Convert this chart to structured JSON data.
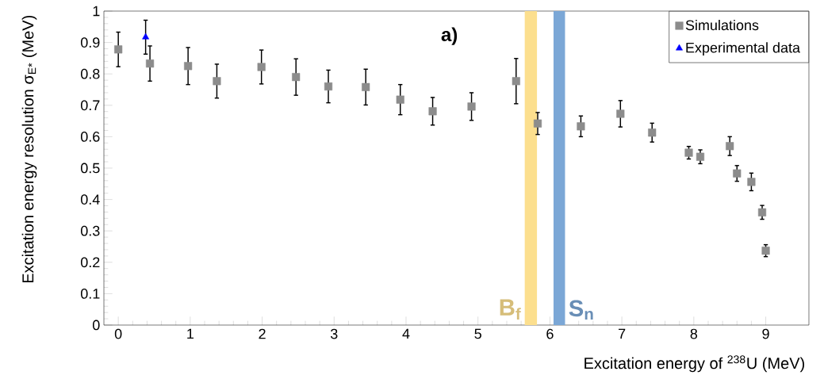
{
  "chart_data": {
    "type": "scatter",
    "xlabel": "Excitation energy of $^{238}$U (MeV)",
    "ylabel": "Excitation energy resolution σ$_{E*}$ (MeV)",
    "annotations": [
      "a)"
    ],
    "xlim": [
      -0.2,
      9.6
    ],
    "ylim": [
      0,
      1
    ],
    "xticks": [
      0,
      1,
      2,
      3,
      4,
      5,
      6,
      7,
      8,
      9
    ],
    "yticks": [
      0,
      0.1,
      0.2,
      0.3,
      0.4,
      0.5,
      0.6,
      0.7,
      0.8,
      0.9,
      1
    ],
    "legend": "top right",
    "series": [
      {
        "name": "Simulations",
        "color": "#8c8c8c",
        "marker": "square",
        "x": [
          0.0,
          0.44,
          0.97,
          1.37,
          1.99,
          2.47,
          2.92,
          3.44,
          3.92,
          4.37,
          4.91,
          5.53,
          5.83,
          6.43,
          6.98,
          7.42,
          7.93,
          8.09,
          8.5,
          8.6,
          8.8,
          8.95,
          9.0
        ],
        "values": [
          0.878,
          0.833,
          0.825,
          0.777,
          0.822,
          0.79,
          0.76,
          0.758,
          0.718,
          0.681,
          0.696,
          0.777,
          0.642,
          0.633,
          0.673,
          0.613,
          0.549,
          0.536,
          0.57,
          0.483,
          0.456,
          0.359,
          0.237
        ],
        "errors": [
          0.055,
          0.056,
          0.059,
          0.054,
          0.054,
          0.058,
          0.052,
          0.057,
          0.048,
          0.044,
          0.044,
          0.072,
          0.035,
          0.033,
          0.042,
          0.03,
          0.02,
          0.022,
          0.03,
          0.025,
          0.028,
          0.022,
          0.019
        ]
      },
      {
        "name": "Experimental data",
        "color": "#0000ff",
        "marker": "triangle",
        "x": [
          0.38
        ],
        "values": [
          0.917
        ],
        "errors": [
          0.054
        ]
      }
    ],
    "bands": [
      {
        "axis": "x",
        "from": 5.65,
        "to": 5.82,
        "label": "B$_{f}$",
        "color": "#fcdf8e"
      },
      {
        "axis": "x",
        "from": 6.05,
        "to": 6.21,
        "label": "S$_{n}$",
        "color": "#7ba7d6"
      }
    ]
  }
}
